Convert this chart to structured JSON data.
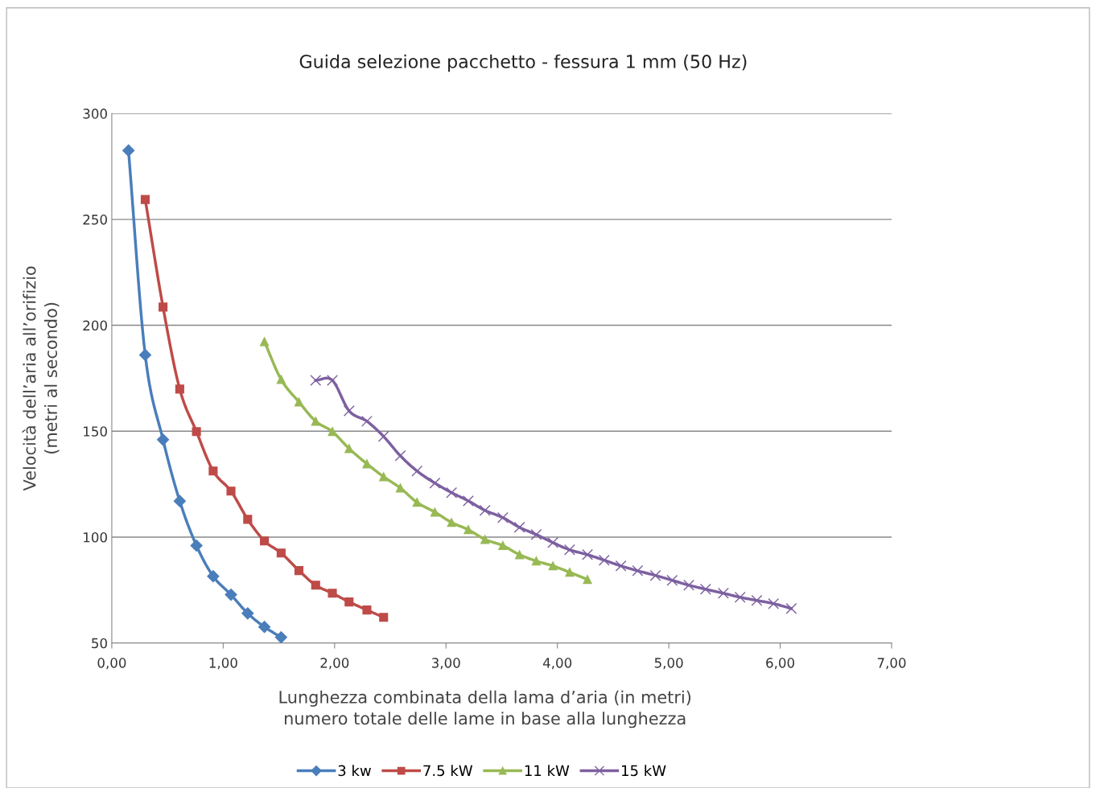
{
  "chart_data": {
    "type": "line",
    "title": "Guida selezione pacchetto - fessura 1 mm (50 Hz)",
    "xlabel": "Lunghezza combinata della lama d’aria (in metri)\nnumero totale delle lame in base alla lunghezza",
    "ylabel": "Velocità dell’aria all’orifizio\n(metri al secondo)",
    "xlim": [
      0,
      7
    ],
    "ylim": [
      50,
      300
    ],
    "xticks": [
      {
        "value": 0,
        "label": "0,00"
      },
      {
        "value": 1,
        "label": "1,00"
      },
      {
        "value": 2,
        "label": "2,00"
      },
      {
        "value": 3,
        "label": "3,00"
      },
      {
        "value": 4,
        "label": "4,00"
      },
      {
        "value": 5,
        "label": "5,00"
      },
      {
        "value": 6,
        "label": "6,00"
      },
      {
        "value": 7,
        "label": "7,00"
      }
    ],
    "yticks": [
      50,
      100,
      150,
      200,
      250,
      300
    ],
    "grid": "y",
    "legend": "bottom",
    "line_style": "solid",
    "series": [
      {
        "name": "3 kw",
        "color": "#4a7ebb",
        "marker": "diamond",
        "x": [
          0.15,
          0.3,
          0.46,
          0.61,
          0.76,
          0.91,
          1.07,
          1.22,
          1.37,
          1.52
        ],
        "values": [
          282.5,
          186,
          146,
          117,
          96,
          81.5,
          72.8,
          64,
          57.6,
          52.7
        ]
      },
      {
        "name": "7.5 kW",
        "color": "#be4b48",
        "marker": "square",
        "x": [
          0.3,
          0.46,
          0.61,
          0.76,
          0.91,
          1.07,
          1.22,
          1.37,
          1.52,
          1.68,
          1.83,
          1.98,
          2.13,
          2.29,
          2.44
        ],
        "values": [
          259.4,
          208.6,
          169.9,
          149.8,
          131.2,
          121.7,
          108.4,
          98.2,
          92.5,
          84.2,
          77.3,
          73.5,
          69.4,
          65.6,
          62.1
        ]
      },
      {
        "name": "11 kW",
        "color": "#98b954",
        "marker": "triangle",
        "x": [
          1.37,
          1.52,
          1.68,
          1.83,
          1.98,
          2.13,
          2.29,
          2.44,
          2.59,
          2.74,
          2.9,
          3.05,
          3.2,
          3.35,
          3.51,
          3.66,
          3.81,
          3.96,
          4.11,
          4.27
        ],
        "values": [
          192.3,
          174.4,
          163.8,
          154.7,
          149.8,
          141.8,
          134.6,
          128.5,
          123.2,
          116.4,
          111.8,
          106.9,
          103.5,
          98.9,
          96,
          91.7,
          88.7,
          86.4,
          83.4,
          80
        ]
      },
      {
        "name": "15 kW",
        "color": "#7d60a0",
        "marker": "cross",
        "x": [
          1.83,
          1.98,
          2.13,
          2.29,
          2.44,
          2.59,
          2.74,
          2.9,
          3.05,
          3.2,
          3.35,
          3.51,
          3.66,
          3.81,
          3.96,
          4.11,
          4.27,
          4.42,
          4.57,
          4.72,
          4.88,
          5.03,
          5.18,
          5.33,
          5.49,
          5.64,
          5.79,
          5.94,
          6.1
        ],
        "values": [
          174,
          174,
          159.6,
          154.7,
          147.5,
          138.4,
          131.2,
          125.5,
          121,
          117.1,
          112.6,
          109.2,
          104.6,
          101.2,
          97.4,
          94,
          91.7,
          89.1,
          86.4,
          84.1,
          81.9,
          79.6,
          77.3,
          75.4,
          73.5,
          71.6,
          70.1,
          68.6,
          66.3
        ]
      }
    ]
  }
}
